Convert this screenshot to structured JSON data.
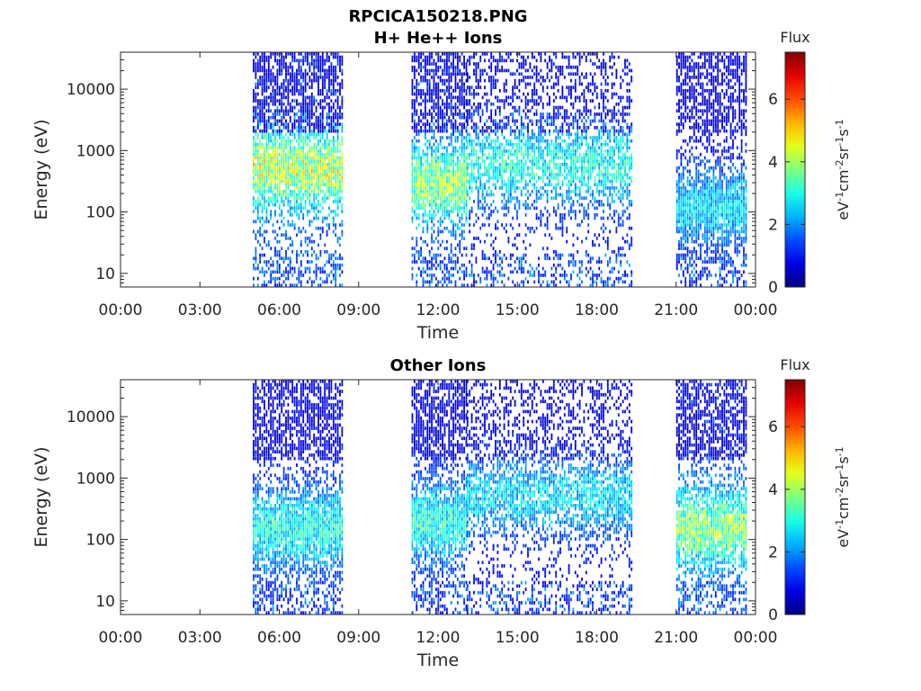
{
  "figure_title": "RPCICA150218.PNG",
  "chart_data": [
    {
      "type": "heatmap",
      "title": "H+ He++ Ions",
      "xlabel": "Time",
      "ylabel": "Energy (eV)",
      "x_ticks": [
        "00:00",
        "03:00",
        "06:00",
        "09:00",
        "12:00",
        "15:00",
        "18:00",
        "21:00",
        "00:00"
      ],
      "x_range_hours": [
        0,
        24
      ],
      "y_scale": "log",
      "y_ticks": [
        "10",
        "100",
        "1000",
        "10000"
      ],
      "y_range_ev": [
        6,
        40000
      ],
      "colorbar": {
        "title": "Flux",
        "label_text": "eV",
        "ticks": [
          "0",
          "2",
          "4",
          "6"
        ],
        "range": [
          0,
          7.5
        ],
        "colormap": "jet"
      },
      "segments": [
        {
          "start": "05:00",
          "end": "08:25",
          "flux_peak": 5.0,
          "peak_energy_ev": 500
        },
        {
          "start": "11:00",
          "end": "13:05",
          "flux_peak": 4.5,
          "peak_energy_ev": 300
        },
        {
          "start": "13:05",
          "end": "19:20",
          "flux_peak": 3.5,
          "peak_energy_ev": 600
        },
        {
          "start": "21:00",
          "end": "23:40",
          "flux_peak": 3.0,
          "peak_energy_ev": 120
        }
      ]
    },
    {
      "type": "heatmap",
      "title": "Other Ions",
      "xlabel": "Time",
      "ylabel": "Energy (eV)",
      "x_ticks": [
        "00:00",
        "03:00",
        "06:00",
        "09:00",
        "12:00",
        "15:00",
        "18:00",
        "21:00",
        "00:00"
      ],
      "x_range_hours": [
        0,
        24
      ],
      "y_scale": "log",
      "y_ticks": [
        "10",
        "100",
        "1000",
        "10000"
      ],
      "y_range_ev": [
        6,
        40000
      ],
      "colorbar": {
        "title": "Flux",
        "label_text": "eV",
        "ticks": [
          "0",
          "2",
          "4",
          "6"
        ],
        "range": [
          0,
          7.5
        ],
        "colormap": "jet"
      },
      "segments": [
        {
          "start": "05:00",
          "end": "08:25",
          "flux_peak": 3.5,
          "peak_energy_ev": 150
        },
        {
          "start": "11:00",
          "end": "13:05",
          "flux_peak": 3.5,
          "peak_energy_ev": 200
        },
        {
          "start": "13:05",
          "end": "19:20",
          "flux_peak": 3.0,
          "peak_energy_ev": 500
        },
        {
          "start": "21:00",
          "end": "23:40",
          "flux_peak": 4.5,
          "peak_energy_ev": 150
        }
      ]
    }
  ]
}
